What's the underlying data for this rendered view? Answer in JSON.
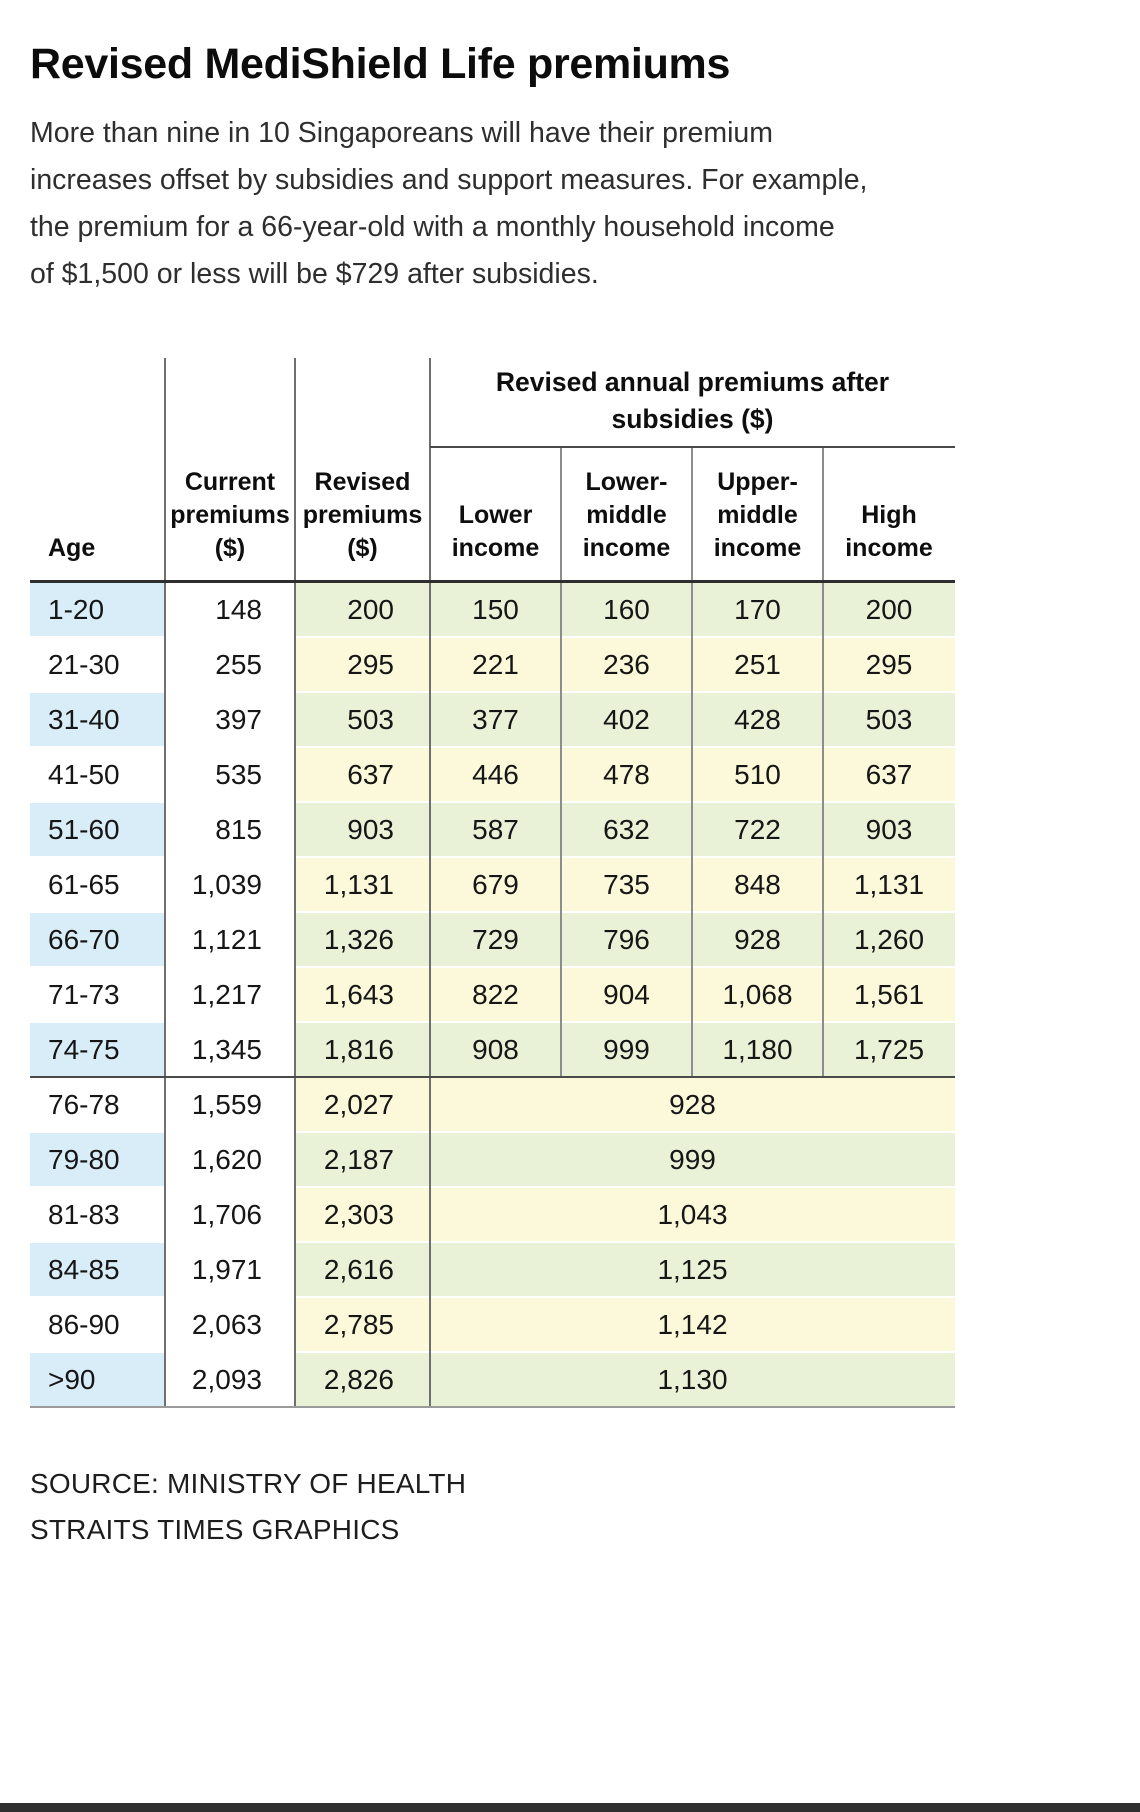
{
  "header": {
    "title": "Revised MediShield Life premiums",
    "intro": "More than nine in 10 Singaporeans will have their premium\nincreases offset by subsidies and support measures. For example,\nthe premium for a 66-year-old with a monthly household income\nof $1,500 or less will be $729 after subsidies."
  },
  "footer": {
    "source": "SOURCE: MINISTRY OF HEALTH",
    "credit": "STRAITS TIMES GRAPHICS"
  },
  "chart_data": {
    "type": "table",
    "title": "Revised MediShield Life premiums",
    "group_header": "Revised annual premiums after\nsubsidies ($)",
    "columns": [
      "Age",
      "Current\npremiums\n($)",
      "Revised\npremiums\n($)",
      "Lower\nincome",
      "Lower-\nmiddle\nincome",
      "Upper-\nmiddle\nincome",
      "High\nincome"
    ],
    "rows": [
      {
        "age": "1-20",
        "current": "148",
        "revised": "200",
        "subsidised": [
          "150",
          "160",
          "170",
          "200"
        ]
      },
      {
        "age": "21-30",
        "current": "255",
        "revised": "295",
        "subsidised": [
          "221",
          "236",
          "251",
          "295"
        ]
      },
      {
        "age": "31-40",
        "current": "397",
        "revised": "503",
        "subsidised": [
          "377",
          "402",
          "428",
          "503"
        ]
      },
      {
        "age": "41-50",
        "current": "535",
        "revised": "637",
        "subsidised": [
          "446",
          "478",
          "510",
          "637"
        ]
      },
      {
        "age": "51-60",
        "current": "815",
        "revised": "903",
        "subsidised": [
          "587",
          "632",
          "722",
          "903"
        ]
      },
      {
        "age": "61-65",
        "current": "1,039",
        "revised": "1,131",
        "subsidised": [
          "679",
          "735",
          "848",
          "1,131"
        ]
      },
      {
        "age": "66-70",
        "current": "1,121",
        "revised": "1,326",
        "subsidised": [
          "729",
          "796",
          "928",
          "1,260"
        ]
      },
      {
        "age": "71-73",
        "current": "1,217",
        "revised": "1,643",
        "subsidised": [
          "822",
          "904",
          "1,068",
          "1,561"
        ]
      },
      {
        "age": "74-75",
        "current": "1,345",
        "revised": "1,816",
        "subsidised": [
          "908",
          "999",
          "1,180",
          "1,725"
        ]
      },
      {
        "age": "76-78",
        "current": "1,559",
        "revised": "2,027",
        "subsidised_all": "928"
      },
      {
        "age": "79-80",
        "current": "1,620",
        "revised": "2,187",
        "subsidised_all": "999"
      },
      {
        "age": "81-83",
        "current": "1,706",
        "revised": "2,303",
        "subsidised_all": "1,043"
      },
      {
        "age": "84-85",
        "current": "1,971",
        "revised": "2,616",
        "subsidised_all": "1,125"
      },
      {
        "age": "86-90",
        "current": "2,063",
        "revised": "2,785",
        "subsidised_all": "1,142"
      },
      {
        "age": ">90",
        "current": "2,093",
        "revised": "2,826",
        "subsidised_all": "1,130"
      }
    ],
    "colors": {
      "age_stripe": "#d9edf8",
      "green_stripe": "#e9f1d7",
      "yellow_stripe": "#fbf9d9",
      "rule_dark": "#4a4a4a",
      "rule_gray": "#8d8d8d"
    },
    "layout": {
      "grid": "off",
      "legend": "none",
      "merged_rows_note": "Rows 76-78 and older share one subsidised premium across all income bands"
    }
  }
}
